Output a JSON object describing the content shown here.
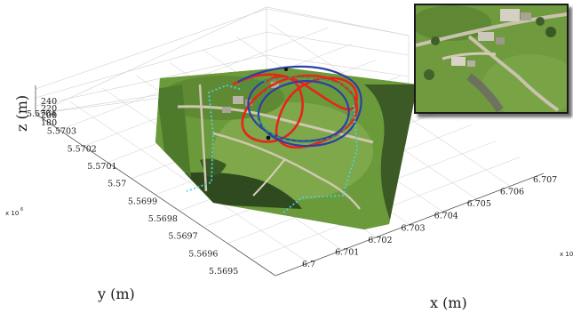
{
  "chart_data": {
    "type": "line",
    "subtype": "3d-flight-trajectory-over-orthophoto",
    "xlabel": "x (m)",
    "ylabel": "y (m)",
    "zlabel": "z (m)",
    "x_ticks": [
      "6.7",
      "6.701",
      "6.702",
      "6.703",
      "6.704",
      "6.705",
      "6.706",
      "6.707"
    ],
    "x_multiplier": "x 10",
    "x_ticks_values": [
      6.7,
      6.701,
      6.702,
      6.703,
      6.704,
      6.705,
      6.706,
      6.707
    ],
    "y_ticks": [
      "5.5695",
      "5.5696",
      "5.5697",
      "5.5698",
      "5.5699",
      "5.57",
      "5.5701",
      "5.5702",
      "5.5703",
      "5.5704"
    ],
    "y_multiplier": "x 10",
    "y_multiplier_exponent": "6",
    "y_ticks_values": [
      5.5695,
      5.5696,
      5.5697,
      5.5698,
      5.5699,
      5.57,
      5.5701,
      5.5702,
      5.5703,
      5.5704
    ],
    "z_ticks": [
      "180",
      "200",
      "220",
      "240"
    ],
    "z_ticks_values": [
      180,
      200,
      220,
      240
    ],
    "grid": true,
    "series": [
      {
        "color": "#e8241c",
        "style": "solid"
      },
      {
        "color": "#2e3fa6",
        "style": "solid"
      },
      {
        "color": "#2a9a6a",
        "style": "dashed"
      },
      {
        "color": "#4fd0de",
        "style": "dotted"
      }
    ],
    "inset": "aerial-photo-top-right"
  },
  "colors": {
    "grass": "#5a8a32",
    "grass_light": "#7ea345",
    "forest": "#2f4a1f",
    "road": "#c9c2ae",
    "axis": "#333333",
    "grid": "#d2d2d2"
  }
}
